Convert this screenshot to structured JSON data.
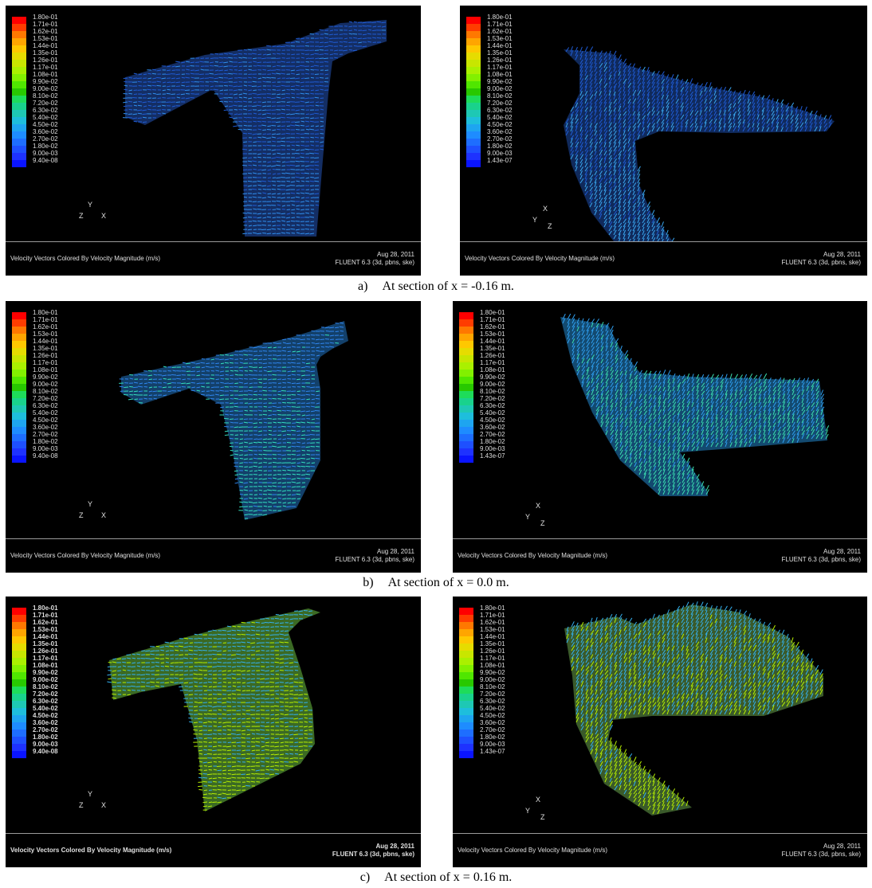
{
  "legend_left": [
    "1.80e-01",
    "1.71e-01",
    "1.62e-01",
    "1.53e-01",
    "1.44e-01",
    "1.35e-01",
    "1.26e-01",
    "1.17e-01",
    "1.08e-01",
    "9.90e-02",
    "9.00e-02",
    "8.10e-02",
    "7.20e-02",
    "6.30e-02",
    "5.40e-02",
    "4.50e-02",
    "3.60e-02",
    "2.70e-02",
    "1.80e-02",
    "9.00e-03",
    "9.40e-08"
  ],
  "legend_right": [
    "1.80e-01",
    "1.71e-01",
    "1.62e-01",
    "1.53e-01",
    "1.44e-01",
    "1.35e-01",
    "1.26e-01",
    "1.17e-01",
    "1.08e-01",
    "9.90e-02",
    "9.00e-02",
    "8.10e-02",
    "7.20e-02",
    "6.30e-02",
    "5.40e-02",
    "4.50e-02",
    "3.60e-02",
    "2.70e-02",
    "1.80e-02",
    "9.00e-03",
    "1.43e-07"
  ],
  "legend_colors": [
    "#ff0000",
    "#ff3c00",
    "#ff7800",
    "#ffa500",
    "#ffc800",
    "#e6dc00",
    "#c8e600",
    "#aaf000",
    "#82f000",
    "#50e600",
    "#28c800",
    "#1edc5a",
    "#19d28c",
    "#1ec8b4",
    "#1ebedc",
    "#1ea5f0",
    "#1e8cff",
    "#1e6eff",
    "#1e50ff",
    "#1e32ff",
    "#0a14ff"
  ],
  "caption": "Velocity Vectors Colored By Velocity Magnitude (m/s)",
  "date": "Aug 28, 2011",
  "solver": "FLUENT 6.3 (3d, pbns, ske)",
  "axes_left": {
    "y": "Y",
    "z": "Z",
    "x": "X"
  },
  "axes_right": {
    "x": "X",
    "y": "Y",
    "z": "Z"
  },
  "rows": [
    {
      "letter": "a)",
      "text": "At section of x = -0.16 m."
    },
    {
      "letter": "b)",
      "text": "At section of x = 0.0 m."
    },
    {
      "letter": "c)",
      "text": "At section of x = 0.16 m."
    }
  ],
  "panels": [
    {
      "id": "a-left",
      "colorA": "#1f5cd6",
      "colorB": "#2f8ff0"
    },
    {
      "id": "a-right",
      "colorA": "#1f5cd6",
      "colorB": "#3aa7f0"
    },
    {
      "id": "b-left",
      "colorA": "#2f86f0",
      "colorB": "#33e0c0"
    },
    {
      "id": "b-right",
      "colorA": "#2f9ff0",
      "colorB": "#3ce0b0"
    },
    {
      "id": "c-left",
      "colorA": "#34b0f0",
      "colorB": "#b7f000"
    },
    {
      "id": "c-right",
      "colorA": "#34b0f0",
      "colorB": "#b7f000"
    }
  ]
}
